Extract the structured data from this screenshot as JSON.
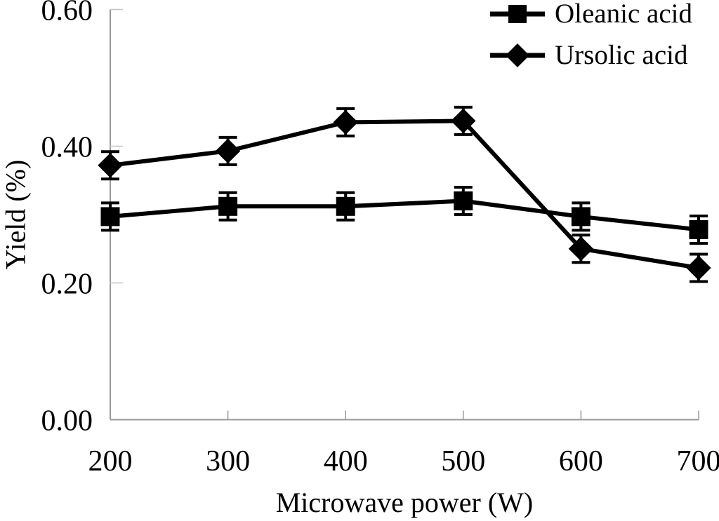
{
  "figure": {
    "background": "#ffffff",
    "text_color": "#000000"
  },
  "chart_data": {
    "type": "line",
    "title": "",
    "xlabel": "Microwave power (W)",
    "ylabel": "Yield (%)",
    "categories": [
      200,
      300,
      400,
      500,
      600,
      700
    ],
    "xtick_labels": [
      "200",
      "300",
      "400",
      "500",
      "600",
      "700"
    ],
    "ylim": [
      0,
      0.6
    ],
    "yticks": [
      0,
      0.2,
      0.4,
      0.6
    ],
    "ytick_labels": [
      "0.00",
      "0.20",
      "0.40",
      "0.60"
    ],
    "grid": false,
    "legend_position": "top-right",
    "axis_color": "#999999",
    "tick_color": "#c4c4c4",
    "series": [
      {
        "name": "Oleanic acid",
        "marker": "square",
        "color": "#000000",
        "values": [
          0.297,
          0.312,
          0.312,
          0.32,
          0.297,
          0.278
        ],
        "error": [
          0.02,
          0.02,
          0.02,
          0.02,
          0.02,
          0.02
        ]
      },
      {
        "name": "Ursolic acid",
        "marker": "diamond",
        "color": "#000000",
        "values": [
          0.372,
          0.393,
          0.435,
          0.437,
          0.25,
          0.222
        ],
        "error": [
          0.02,
          0.02,
          0.02,
          0.02,
          0.02,
          0.02
        ]
      }
    ]
  }
}
